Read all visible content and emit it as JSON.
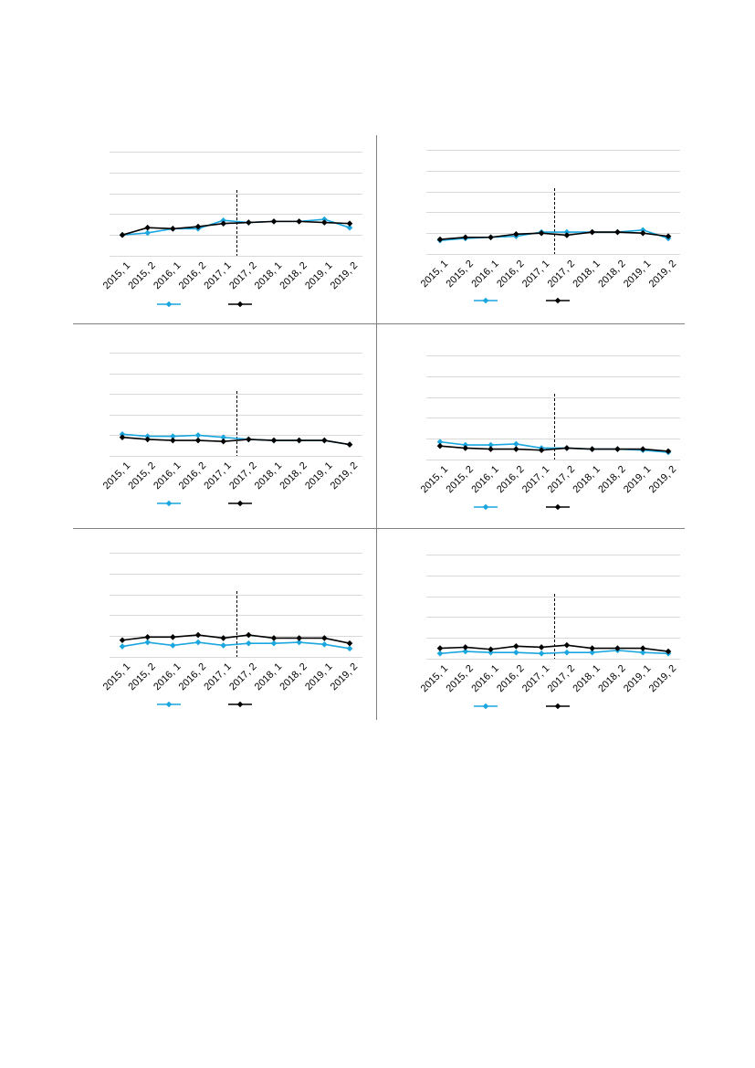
{
  "colors": {
    "series_a": "#1aa6de",
    "series_b": "#000000",
    "grid": "#d9d9d9",
    "divider": "#808080"
  },
  "categories": [
    "2015, 1",
    "2015, 2",
    "2016, 1",
    "2016, 2",
    "2017, 1",
    "2017, 2",
    "2018, 1",
    "2018, 2",
    "2019, 1",
    "2019, 2"
  ],
  "chart_data": [
    {
      "type": "line",
      "ylim": [
        0,
        5
      ],
      "grid": true,
      "legend": "bottom",
      "marker": "diamond",
      "series": [
        {
          "values": [
            1.0,
            1.1,
            1.3,
            1.3,
            1.7,
            1.6,
            1.65,
            1.65,
            1.75,
            1.35
          ]
        },
        {
          "values": [
            1.0,
            1.35,
            1.3,
            1.4,
            1.55,
            1.6,
            1.65,
            1.65,
            1.6,
            1.55
          ]
        }
      ]
    },
    {
      "type": "line",
      "ylim": [
        0,
        5
      ],
      "grid": true,
      "legend": "bottom",
      "marker": "diamond",
      "series": [
        {
          "values": [
            0.65,
            0.75,
            0.8,
            0.85,
            1.05,
            1.05,
            1.05,
            1.05,
            1.15,
            0.75
          ]
        },
        {
          "values": [
            0.7,
            0.8,
            0.8,
            0.95,
            1.0,
            0.9,
            1.05,
            1.05,
            1.0,
            0.85
          ]
        }
      ]
    },
    {
      "type": "line",
      "ylim": [
        0,
        5
      ],
      "grid": true,
      "legend": "bottom",
      "marker": "diamond",
      "series": [
        {
          "values": [
            1.05,
            0.95,
            0.95,
            1.0,
            0.9,
            0.8,
            0.75,
            0.75,
            0.75,
            0.55
          ]
        },
        {
          "values": [
            0.9,
            0.8,
            0.75,
            0.75,
            0.7,
            0.8,
            0.75,
            0.75,
            0.75,
            0.55
          ]
        }
      ]
    },
    {
      "type": "line",
      "ylim": [
        0,
        5
      ],
      "grid": true,
      "legend": "bottom",
      "marker": "diamond",
      "series": [
        {
          "values": [
            0.85,
            0.7,
            0.7,
            0.75,
            0.55,
            0.55,
            0.5,
            0.5,
            0.45,
            0.35
          ]
        },
        {
          "values": [
            0.65,
            0.55,
            0.5,
            0.5,
            0.45,
            0.55,
            0.5,
            0.5,
            0.5,
            0.4
          ]
        }
      ]
    },
    {
      "type": "line",
      "ylim": [
        0,
        5
      ],
      "grid": true,
      "legend": "bottom",
      "marker": "diamond",
      "series": [
        {
          "values": [
            0.5,
            0.7,
            0.55,
            0.7,
            0.55,
            0.65,
            0.65,
            0.7,
            0.6,
            0.4
          ]
        },
        {
          "values": [
            0.8,
            0.95,
            0.95,
            1.05,
            0.9,
            1.05,
            0.9,
            0.9,
            0.9,
            0.65
          ]
        }
      ]
    },
    {
      "type": "line",
      "ylim": [
        0,
        5
      ],
      "grid": true,
      "legend": "bottom",
      "marker": "diamond",
      "series": [
        {
          "values": [
            0.25,
            0.35,
            0.3,
            0.3,
            0.25,
            0.3,
            0.3,
            0.4,
            0.3,
            0.25
          ]
        },
        {
          "values": [
            0.5,
            0.55,
            0.45,
            0.6,
            0.55,
            0.65,
            0.5,
            0.5,
            0.5,
            0.35
          ]
        }
      ]
    }
  ]
}
